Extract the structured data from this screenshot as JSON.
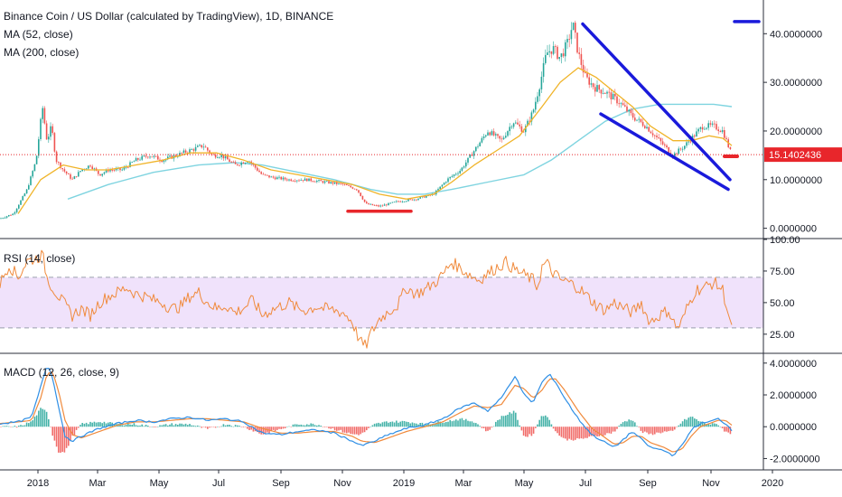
{
  "legend": {
    "main": "Binance Coin / US Dollar (calculated by TradingView), 1D, BINANCE",
    "ma52": "MA (52, close)",
    "ma200": "MA (200, close)",
    "rsi": "RSI (14, close)",
    "macd": "MACD (12, 26, close, 9)"
  },
  "colors": {
    "candle_up": "#26a69a",
    "candle_down": "#ef5350",
    "ma52": "#f0b429",
    "ma200": "#7fd4e0",
    "trendline": "#1a1adb",
    "support": "#e8262b",
    "last_price": "#e8262b",
    "rsi_line": "#f08a3c",
    "rsi_band": "#f0e2fb",
    "macd_line": "#2f8fe5",
    "signal_line": "#f08a3c"
  },
  "x_axis": {
    "labels": [
      "2018",
      "Mar",
      "May",
      "Jul",
      "Sep",
      "Nov",
      "2019",
      "Mar",
      "May",
      "Jul",
      "Sep",
      "Nov",
      "2020"
    ]
  },
  "last_price": "15.1402436",
  "chart_data": [
    {
      "type": "candlestick",
      "pane": "price",
      "legend": [
        "Binance Coin / US Dollar (calculated by TradingView), 1D, BINANCE",
        "MA (52, close)",
        "MA (200, close)"
      ],
      "y_ticks": [
        "40.0000000",
        "30.0000000",
        "20.0000000",
        "10.0000000",
        "0.0000000"
      ],
      "ylim": [
        -1,
        46
      ],
      "close_path": [
        [
          0,
          2
        ],
        [
          15,
          3
        ],
        [
          30,
          8
        ],
        [
          40,
          14
        ],
        [
          47,
          25
        ],
        [
          52,
          18
        ],
        [
          57,
          21
        ],
        [
          62,
          14
        ],
        [
          70,
          12
        ],
        [
          80,
          10
        ],
        [
          90,
          12
        ],
        [
          100,
          13
        ],
        [
          110,
          11
        ],
        [
          120,
          12
        ],
        [
          135,
          12
        ],
        [
          150,
          14
        ],
        [
          165,
          15
        ],
        [
          180,
          14
        ],
        [
          195,
          15
        ],
        [
          210,
          16
        ],
        [
          225,
          17
        ],
        [
          235,
          15
        ],
        [
          245,
          15
        ],
        [
          260,
          13
        ],
        [
          275,
          14
        ],
        [
          290,
          11
        ],
        [
          300,
          10.5
        ],
        [
          320,
          10
        ],
        [
          340,
          10
        ],
        [
          360,
          9.5
        ],
        [
          380,
          9
        ],
        [
          395,
          8
        ],
        [
          405,
          5
        ],
        [
          420,
          4.5
        ],
        [
          440,
          5.5
        ],
        [
          460,
          6
        ],
        [
          480,
          7
        ],
        [
          495,
          10
        ],
        [
          510,
          12
        ],
        [
          525,
          16
        ],
        [
          540,
          20
        ],
        [
          555,
          18
        ],
        [
          568,
          22
        ],
        [
          580,
          20
        ],
        [
          590,
          24
        ],
        [
          598,
          30
        ],
        [
          605,
          36
        ],
        [
          612,
          37
        ],
        [
          620,
          35
        ],
        [
          628,
          38
        ],
        [
          634,
          42
        ],
        [
          640,
          36
        ],
        [
          648,
          31
        ],
        [
          658,
          29
        ],
        [
          670,
          28
        ],
        [
          685,
          26
        ],
        [
          700,
          23
        ],
        [
          715,
          21
        ],
        [
          730,
          18
        ],
        [
          745,
          15
        ],
        [
          758,
          17
        ],
        [
          768,
          19
        ],
        [
          778,
          21
        ],
        [
          790,
          21
        ],
        [
          800,
          20
        ],
        [
          806,
          17
        ],
        [
          810,
          15.14
        ]
      ],
      "ma52_path": [
        [
          20,
          3
        ],
        [
          45,
          10
        ],
        [
          70,
          13
        ],
        [
          95,
          12
        ],
        [
          120,
          12
        ],
        [
          150,
          13
        ],
        [
          180,
          14
        ],
        [
          210,
          15.5
        ],
        [
          240,
          15.5
        ],
        [
          270,
          14
        ],
        [
          300,
          12
        ],
        [
          330,
          11
        ],
        [
          360,
          10
        ],
        [
          390,
          9
        ],
        [
          420,
          7
        ],
        [
          450,
          6
        ],
        [
          480,
          7
        ],
        [
          500,
          9.5
        ],
        [
          525,
          13
        ],
        [
          550,
          16
        ],
        [
          575,
          19
        ],
        [
          600,
          25
        ],
        [
          620,
          30
        ],
        [
          640,
          33
        ],
        [
          660,
          31
        ],
        [
          680,
          28
        ],
        [
          700,
          25
        ],
        [
          720,
          21
        ],
        [
          745,
          18
        ],
        [
          765,
          18
        ],
        [
          785,
          19
        ],
        [
          800,
          18.5
        ],
        [
          810,
          17
        ]
      ],
      "ma200_path": [
        [
          75,
          6
        ],
        [
          120,
          9
        ],
        [
          170,
          11.5
        ],
        [
          220,
          13
        ],
        [
          260,
          13.5
        ],
        [
          290,
          13
        ],
        [
          330,
          11.5
        ],
        [
          370,
          10
        ],
        [
          410,
          8
        ],
        [
          440,
          7
        ],
        [
          470,
          7
        ],
        [
          500,
          8
        ],
        [
          540,
          9.5
        ],
        [
          580,
          11
        ],
        [
          610,
          14
        ],
        [
          640,
          18
        ],
        [
          670,
          22
        ],
        [
          700,
          24.5
        ],
        [
          730,
          25.5
        ],
        [
          760,
          25.5
        ],
        [
          790,
          25.5
        ],
        [
          810,
          25
        ]
      ],
      "annotations": {
        "upper_trendline": [
          [
            645,
            42
          ],
          [
            808,
            10
          ]
        ],
        "lower_trendline": [
          [
            665,
            23.5
          ],
          [
            806,
            8
          ]
        ],
        "support_line": [
          [
            385,
            3.5
          ],
          [
            455,
            3.5
          ]
        ],
        "top_marker": [
          [
            813,
            42.5
          ],
          [
            840,
            42.5
          ]
        ],
        "last_price_marker": [
          [
            802,
            14.8
          ],
          [
            816,
            14.8
          ]
        ],
        "last_price_dotted": 15.14
      }
    },
    {
      "type": "line",
      "pane": "rsi",
      "legend": "RSI (14, close)",
      "y_ticks": [
        "100.00",
        "75.00",
        "50.00",
        "25.00"
      ],
      "ylim": [
        12,
        100
      ],
      "band": [
        30,
        70
      ],
      "path": [
        [
          0,
          65
        ],
        [
          10,
          80
        ],
        [
          20,
          70
        ],
        [
          30,
          83
        ],
        [
          40,
          85
        ],
        [
          47,
          88
        ],
        [
          52,
          70
        ],
        [
          58,
          62
        ],
        [
          65,
          55
        ],
        [
          72,
          48
        ],
        [
          80,
          40
        ],
        [
          90,
          45
        ],
        [
          100,
          40
        ],
        [
          110,
          50
        ],
        [
          120,
          55
        ],
        [
          130,
          58
        ],
        [
          140,
          62
        ],
        [
          150,
          57
        ],
        [
          160,
          55
        ],
        [
          170,
          52
        ],
        [
          180,
          50
        ],
        [
          190,
          45
        ],
        [
          200,
          47
        ],
        [
          210,
          55
        ],
        [
          220,
          58
        ],
        [
          230,
          50
        ],
        [
          240,
          45
        ],
        [
          250,
          48
        ],
        [
          260,
          42
        ],
        [
          270,
          46
        ],
        [
          280,
          52
        ],
        [
          290,
          40
        ],
        [
          300,
          44
        ],
        [
          310,
          47
        ],
        [
          320,
          50
        ],
        [
          330,
          45
        ],
        [
          340,
          44
        ],
        [
          350,
          47
        ],
        [
          360,
          45
        ],
        [
          370,
          44
        ],
        [
          380,
          42
        ],
        [
          390,
          35
        ],
        [
          395,
          25
        ],
        [
          400,
          18
        ],
        [
          405,
          15
        ],
        [
          410,
          25
        ],
        [
          420,
          37
        ],
        [
          430,
          43
        ],
        [
          440,
          48
        ],
        [
          450,
          62
        ],
        [
          460,
          57
        ],
        [
          470,
          60
        ],
        [
          480,
          65
        ],
        [
          490,
          72
        ],
        [
          500,
          82
        ],
        [
          510,
          77
        ],
        [
          520,
          72
        ],
        [
          530,
          68
        ],
        [
          540,
          73
        ],
        [
          550,
          78
        ],
        [
          560,
          82
        ],
        [
          570,
          76
        ],
        [
          580,
          72
        ],
        [
          590,
          68
        ],
        [
          595,
          62
        ],
        [
          600,
          78
        ],
        [
          605,
          82
        ],
        [
          610,
          75
        ],
        [
          615,
          72
        ],
        [
          620,
          68
        ],
        [
          630,
          66
        ],
        [
          640,
          62
        ],
        [
          650,
          55
        ],
        [
          660,
          48
        ],
        [
          670,
          44
        ],
        [
          680,
          50
        ],
        [
          690,
          46
        ],
        [
          700,
          42
        ],
        [
          710,
          50
        ],
        [
          715,
          40
        ],
        [
          720,
          35
        ],
        [
          730,
          40
        ],
        [
          740,
          44
        ],
        [
          745,
          35
        ],
        [
          750,
          30
        ],
        [
          755,
          35
        ],
        [
          760,
          45
        ],
        [
          770,
          60
        ],
        [
          780,
          62
        ],
        [
          790,
          66
        ],
        [
          800,
          60
        ],
        [
          805,
          45
        ],
        [
          810,
          28
        ]
      ]
    },
    {
      "type": "line",
      "pane": "macd",
      "legend": "MACD (12, 26, close, 9)",
      "y_ticks": [
        "4.0000000",
        "2.0000000",
        "0.0000000",
        "-2.0000000"
      ],
      "ylim": [
        -2.6,
        4.5
      ],
      "macd_path": [
        [
          0,
          0.2
        ],
        [
          20,
          0.3
        ],
        [
          35,
          0.6
        ],
        [
          45,
          2.5
        ],
        [
          52,
          3.9
        ],
        [
          58,
          3.2
        ],
        [
          65,
          1.2
        ],
        [
          72,
          -0.6
        ],
        [
          80,
          -0.9
        ],
        [
          90,
          -0.6
        ],
        [
          110,
          -0.1
        ],
        [
          130,
          0.2
        ],
        [
          150,
          0.4
        ],
        [
          170,
          0.3
        ],
        [
          190,
          0.5
        ],
        [
          210,
          0.6
        ],
        [
          230,
          0.4
        ],
        [
          250,
          0.5
        ],
        [
          270,
          0.3
        ],
        [
          290,
          -0.4
        ],
        [
          310,
          -0.5
        ],
        [
          330,
          -0.3
        ],
        [
          350,
          -0.2
        ],
        [
          370,
          -0.4
        ],
        [
          390,
          -0.9
        ],
        [
          400,
          -1.2
        ],
        [
          415,
          -0.9
        ],
        [
          430,
          -0.5
        ],
        [
          450,
          -0.1
        ],
        [
          470,
          0.1
        ],
        [
          490,
          0.5
        ],
        [
          510,
          1.2
        ],
        [
          525,
          1.5
        ],
        [
          540,
          1.0
        ],
        [
          555,
          1.8
        ],
        [
          570,
          3.2
        ],
        [
          580,
          2.0
        ],
        [
          590,
          1.5
        ],
        [
          600,
          2.8
        ],
        [
          608,
          3.3
        ],
        [
          615,
          2.8
        ],
        [
          625,
          1.8
        ],
        [
          640,
          0.5
        ],
        [
          655,
          -0.5
        ],
        [
          670,
          -1.0
        ],
        [
          680,
          -1.3
        ],
        [
          690,
          -0.8
        ],
        [
          700,
          -0.3
        ],
        [
          710,
          -0.8
        ],
        [
          720,
          -1.3
        ],
        [
          735,
          -1.5
        ],
        [
          745,
          -1.8
        ],
        [
          755,
          -1.2
        ],
        [
          765,
          -0.2
        ],
        [
          775,
          0.2
        ],
        [
          785,
          0.3
        ],
        [
          795,
          0.5
        ],
        [
          803,
          0.2
        ],
        [
          810,
          -0.2
        ]
      ],
      "signal_path": [
        [
          0,
          0.2
        ],
        [
          20,
          0.3
        ],
        [
          35,
          0.4
        ],
        [
          45,
          1.8
        ],
        [
          52,
          3.3
        ],
        [
          58,
          3.5
        ],
        [
          65,
          2.2
        ],
        [
          72,
          0.4
        ],
        [
          80,
          -0.5
        ],
        [
          90,
          -0.7
        ],
        [
          110,
          -0.3
        ],
        [
          130,
          0.1
        ],
        [
          150,
          0.3
        ],
        [
          170,
          0.3
        ],
        [
          190,
          0.4
        ],
        [
          210,
          0.5
        ],
        [
          230,
          0.5
        ],
        [
          250,
          0.4
        ],
        [
          270,
          0.3
        ],
        [
          290,
          -0.1
        ],
        [
          310,
          -0.4
        ],
        [
          330,
          -0.4
        ],
        [
          350,
          -0.3
        ],
        [
          370,
          -0.3
        ],
        [
          390,
          -0.6
        ],
        [
          400,
          -0.9
        ],
        [
          415,
          -1.0
        ],
        [
          430,
          -0.7
        ],
        [
          450,
          -0.3
        ],
        [
          470,
          0.0
        ],
        [
          490,
          0.3
        ],
        [
          510,
          0.9
        ],
        [
          525,
          1.3
        ],
        [
          540,
          1.2
        ],
        [
          555,
          1.4
        ],
        [
          570,
          2.6
        ],
        [
          580,
          2.4
        ],
        [
          590,
          1.8
        ],
        [
          600,
          2.3
        ],
        [
          608,
          3.0
        ],
        [
          615,
          3.0
        ],
        [
          625,
          2.3
        ],
        [
          640,
          1.0
        ],
        [
          655,
          -0.1
        ],
        [
          670,
          -0.7
        ],
        [
          680,
          -1.1
        ],
        [
          690,
          -1.0
        ],
        [
          700,
          -0.6
        ],
        [
          710,
          -0.6
        ],
        [
          720,
          -1.0
        ],
        [
          735,
          -1.3
        ],
        [
          745,
          -1.6
        ],
        [
          755,
          -1.4
        ],
        [
          765,
          -0.6
        ],
        [
          775,
          0.0
        ],
        [
          785,
          0.2
        ],
        [
          795,
          0.4
        ],
        [
          803,
          0.4
        ],
        [
          810,
          0.1
        ]
      ]
    }
  ]
}
